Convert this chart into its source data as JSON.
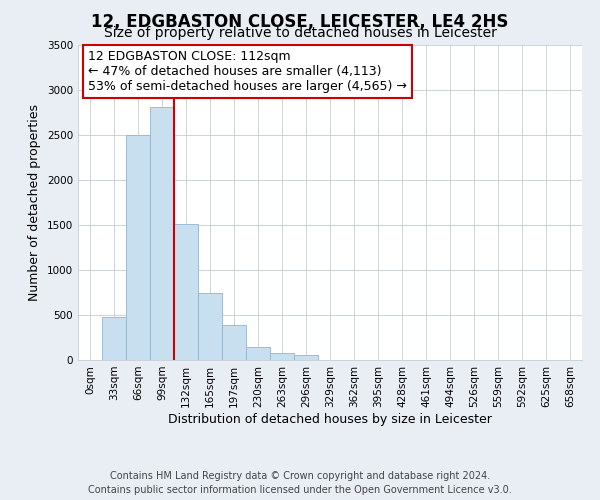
{
  "title": "12, EDGBASTON CLOSE, LEICESTER, LE4 2HS",
  "subtitle": "Size of property relative to detached houses in Leicester",
  "bar_labels": [
    "0sqm",
    "33sqm",
    "66sqm",
    "99sqm",
    "132sqm",
    "165sqm",
    "197sqm",
    "230sqm",
    "263sqm",
    "296sqm",
    "329sqm",
    "362sqm",
    "395sqm",
    "428sqm",
    "461sqm",
    "494sqm",
    "526sqm",
    "559sqm",
    "592sqm",
    "625sqm",
    "658sqm"
  ],
  "bar_values": [
    0,
    480,
    2500,
    2810,
    1510,
    750,
    390,
    150,
    80,
    55,
    0,
    0,
    0,
    0,
    0,
    0,
    0,
    0,
    0,
    0,
    0
  ],
  "bar_color": "#c8dff0",
  "bar_edge_color": "#8ab8d8",
  "vline_color": "#cc0000",
  "ylabel": "Number of detached properties",
  "xlabel": "Distribution of detached houses by size in Leicester",
  "ylim": [
    0,
    3500
  ],
  "annotation_title": "12 EDGBASTON CLOSE: 112sqm",
  "annotation_line1": "← 47% of detached houses are smaller (4,113)",
  "annotation_line2": "53% of semi-detached houses are larger (4,565) →",
  "footer_line1": "Contains HM Land Registry data © Crown copyright and database right 2024.",
  "footer_line2": "Contains public sector information licensed under the Open Government Licence v3.0.",
  "bg_color": "#e8eef4",
  "plot_bg_color": "#ffffff",
  "title_fontsize": 12,
  "subtitle_fontsize": 10,
  "axis_label_fontsize": 9,
  "tick_fontsize": 7.5,
  "footer_fontsize": 7,
  "ann_fontsize": 9
}
